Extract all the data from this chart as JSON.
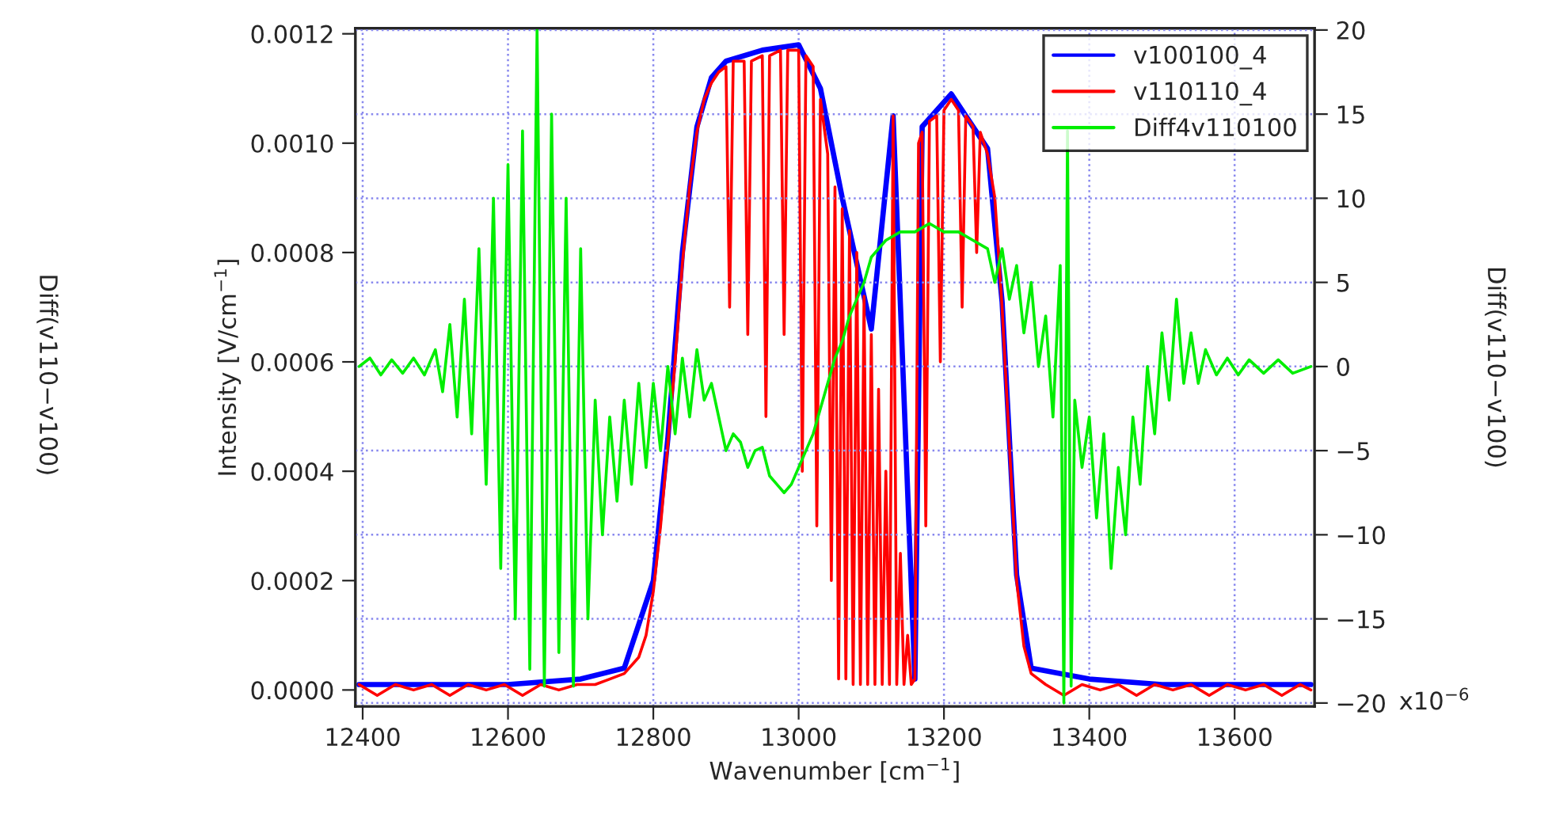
{
  "chart_data": {
    "type": "line",
    "xlabel": "Wavenumber [cm$^{−1}$]",
    "ylabel": "Intensity [V/cm$^{−1}$]",
    "y2label": "Diff(v110−v100)",
    "annotations": [
      "Diff(v110−v100)",
      "x10$^{−6}$"
    ],
    "xlim": [
      12390,
      13710
    ],
    "xticks": [
      12400,
      12600,
      12800,
      13000,
      13200,
      13400,
      13600
    ],
    "ylim": [
      -3e-05,
      0.00121
    ],
    "yticks": [
      {
        "value": 0,
        "label": "0.0000"
      },
      {
        "value": 0.0002,
        "label": "0.0002"
      },
      {
        "value": 0.0004,
        "label": "0.0004"
      },
      {
        "value": 0.0006,
        "label": "0.0006"
      },
      {
        "value": 0.0008,
        "label": "0.0008"
      },
      {
        "value": 0.001,
        "label": "0.0010"
      },
      {
        "value": 0.0012,
        "label": "0.0012"
      }
    ],
    "y2lim": [
      -20.2,
      20.1
    ],
    "y2ticks": [
      {
        "value": -20,
        "label": "−20"
      },
      {
        "value": -15,
        "label": "−15"
      },
      {
        "value": -10,
        "label": "−10"
      },
      {
        "value": -5,
        "label": "−5"
      },
      {
        "value": 0,
        "label": "0"
      },
      {
        "value": 5,
        "label": "5"
      },
      {
        "value": 10,
        "label": "10"
      },
      {
        "value": 15,
        "label": "15"
      },
      {
        "value": 20,
        "label": "20"
      }
    ],
    "grid": true,
    "legend": "top right",
    "line_style": "solid",
    "series": [
      {
        "name": "v100100_4",
        "color": "#0000ff",
        "x": [
          12395,
          12500,
          12600,
          12700,
          12760,
          12800,
          12820,
          12840,
          12860,
          12880,
          12900,
          12950,
          13000,
          13030,
          13060,
          13100,
          13130,
          13160,
          13170,
          13210,
          13260,
          13280,
          13300,
          13320,
          13400,
          13500,
          13600,
          13705
        ],
        "values": [
          1e-05,
          1e-05,
          1e-05,
          2e-05,
          4e-05,
          0.0002,
          0.00046,
          0.0008,
          0.00103,
          0.00112,
          0.00115,
          0.00117,
          0.00118,
          0.0011,
          0.0009,
          0.00066,
          0.00105,
          2e-05,
          0.00103,
          0.00109,
          0.00099,
          0.00071,
          0.00021,
          4e-05,
          2e-05,
          1e-05,
          1e-05,
          1e-05
        ]
      },
      {
        "name": "v110110_4",
        "color": "#ff0000",
        "x": [
          12395,
          12420,
          12445,
          12470,
          12495,
          12520,
          12545,
          12570,
          12595,
          12620,
          12645,
          12670,
          12695,
          12720,
          12740,
          12760,
          12780,
          12790,
          12800,
          12810,
          12820,
          12830,
          12840,
          12850,
          12860,
          12870,
          12880,
          12890,
          12900,
          12905,
          12910,
          12925,
          12930,
          12935,
          12950,
          12955,
          12960,
          12975,
          12980,
          12985,
          13000,
          13005,
          13010,
          13020,
          13025,
          13030,
          13040,
          13045,
          13050,
          13055,
          13060,
          13065,
          13070,
          13075,
          13080,
          13085,
          13090,
          13095,
          13100,
          13105,
          13110,
          13115,
          13120,
          13125,
          13130,
          13135,
          13140,
          13145,
          13150,
          13155,
          13160,
          13165,
          13170,
          13175,
          13180,
          13190,
          13195,
          13200,
          13210,
          13220,
          13225,
          13230,
          13240,
          13245,
          13250,
          13260,
          13270,
          13280,
          13290,
          13300,
          13310,
          13320,
          13340,
          13365,
          13390,
          13415,
          13440,
          13465,
          13490,
          13515,
          13540,
          13565,
          13590,
          13615,
          13640,
          13665,
          13690,
          13705
        ],
        "values": [
          1e-05,
          -1e-05,
          1e-05,
          0,
          1e-05,
          -1e-05,
          1e-05,
          0,
          1e-05,
          -1e-05,
          1e-05,
          0,
          1e-05,
          1e-05,
          2e-05,
          3e-05,
          6e-05,
          0.0001,
          0.00018,
          0.0003,
          0.00045,
          0.0006,
          0.00078,
          0.00092,
          0.00102,
          0.00108,
          0.00111,
          0.00113,
          0.00114,
          0.0007,
          0.00115,
          0.00115,
          0.00065,
          0.00115,
          0.00116,
          0.0005,
          0.00116,
          0.00117,
          0.00065,
          0.00117,
          0.00117,
          0.0004,
          0.00116,
          0.00114,
          0.0003,
          0.00108,
          0.00098,
          0.0002,
          0.00092,
          2e-05,
          0.00088,
          2e-05,
          0.00084,
          1e-05,
          0.0008,
          1e-05,
          0.00072,
          1e-05,
          0.00065,
          1e-05,
          0.00055,
          1e-05,
          0.0004,
          1e-05,
          0.00105,
          1e-05,
          0.00025,
          1e-05,
          0.0001,
          1e-05,
          2e-05,
          0.001,
          0.00102,
          0.0003,
          0.00104,
          0.00105,
          0.0006,
          0.00106,
          0.00108,
          0.00106,
          0.0007,
          0.00105,
          0.00103,
          0.0008,
          0.00102,
          0.00098,
          0.0009,
          0.0007,
          0.00045,
          0.0002,
          8e-05,
          3e-05,
          1e-05,
          -1e-05,
          1e-05,
          0,
          1e-05,
          -1e-05,
          1e-05,
          0,
          1e-05,
          -1e-05,
          1e-05,
          0,
          1e-05,
          -1e-05,
          1e-05,
          0
        ]
      },
      {
        "name": "Diff4v110100",
        "color": "#00ee00",
        "axis": "y2",
        "x": [
          12395,
          12410,
          12425,
          12440,
          12455,
          12470,
          12485,
          12500,
          12510,
          12520,
          12530,
          12540,
          12550,
          12560,
          12570,
          12580,
          12590,
          12600,
          12610,
          12620,
          12630,
          12640,
          12650,
          12660,
          12670,
          12680,
          12690,
          12700,
          12710,
          12720,
          12730,
          12740,
          12750,
          12760,
          12770,
          12780,
          12790,
          12800,
          12810,
          12820,
          12830,
          12840,
          12850,
          12860,
          12870,
          12880,
          12890,
          12900,
          12910,
          12920,
          12930,
          12940,
          12950,
          12960,
          12970,
          12980,
          12990,
          13000,
          13010,
          13020,
          13030,
          13040,
          13050,
          13060,
          13070,
          13080,
          13090,
          13100,
          13110,
          13120,
          13140,
          13160,
          13180,
          13200,
          13220,
          13240,
          13260,
          13270,
          13280,
          13290,
          13300,
          13310,
          13320,
          13330,
          13340,
          13350,
          13360,
          13365,
          13370,
          13375,
          13380,
          13390,
          13400,
          13410,
          13420,
          13430,
          13440,
          13450,
          13460,
          13470,
          13480,
          13490,
          13500,
          13510,
          13520,
          13530,
          13540,
          13550,
          13560,
          13575,
          13590,
          13605,
          13620,
          13640,
          13660,
          13680,
          13705
        ],
        "values": [
          0,
          0.5,
          -0.5,
          0.4,
          -0.4,
          0.5,
          -0.5,
          1,
          -1.5,
          2.5,
          -3,
          4,
          -4,
          7,
          -7,
          10,
          -12,
          12,
          -15,
          14,
          -18,
          20,
          -19,
          15,
          -17,
          10,
          -19,
          7,
          -15,
          -2,
          -10,
          -3,
          -8,
          -2,
          -7,
          -1,
          -6,
          -1,
          -5,
          0,
          -4,
          0.5,
          -3,
          1,
          -2,
          -1,
          -3,
          -5,
          -4,
          -4.5,
          -6,
          -5,
          -4.8,
          -6.5,
          -7,
          -7.5,
          -7,
          -6,
          -5,
          -4,
          -2.5,
          -1,
          0.5,
          1.5,
          3,
          4,
          5,
          6.5,
          7,
          7.5,
          8,
          8,
          8.5,
          8,
          8,
          7.5,
          7,
          5,
          7,
          4,
          6,
          2,
          5,
          0,
          3,
          -3,
          6,
          -20,
          14,
          -19,
          -2,
          -6,
          -3,
          -9,
          -4,
          -12,
          -6,
          -10,
          -3,
          -7,
          0,
          -4,
          2,
          -2,
          4,
          -1,
          2,
          -1,
          1,
          -0.5,
          0.5,
          -0.5,
          0.4,
          -0.4,
          0.4,
          -0.4,
          0
        ]
      }
    ]
  }
}
